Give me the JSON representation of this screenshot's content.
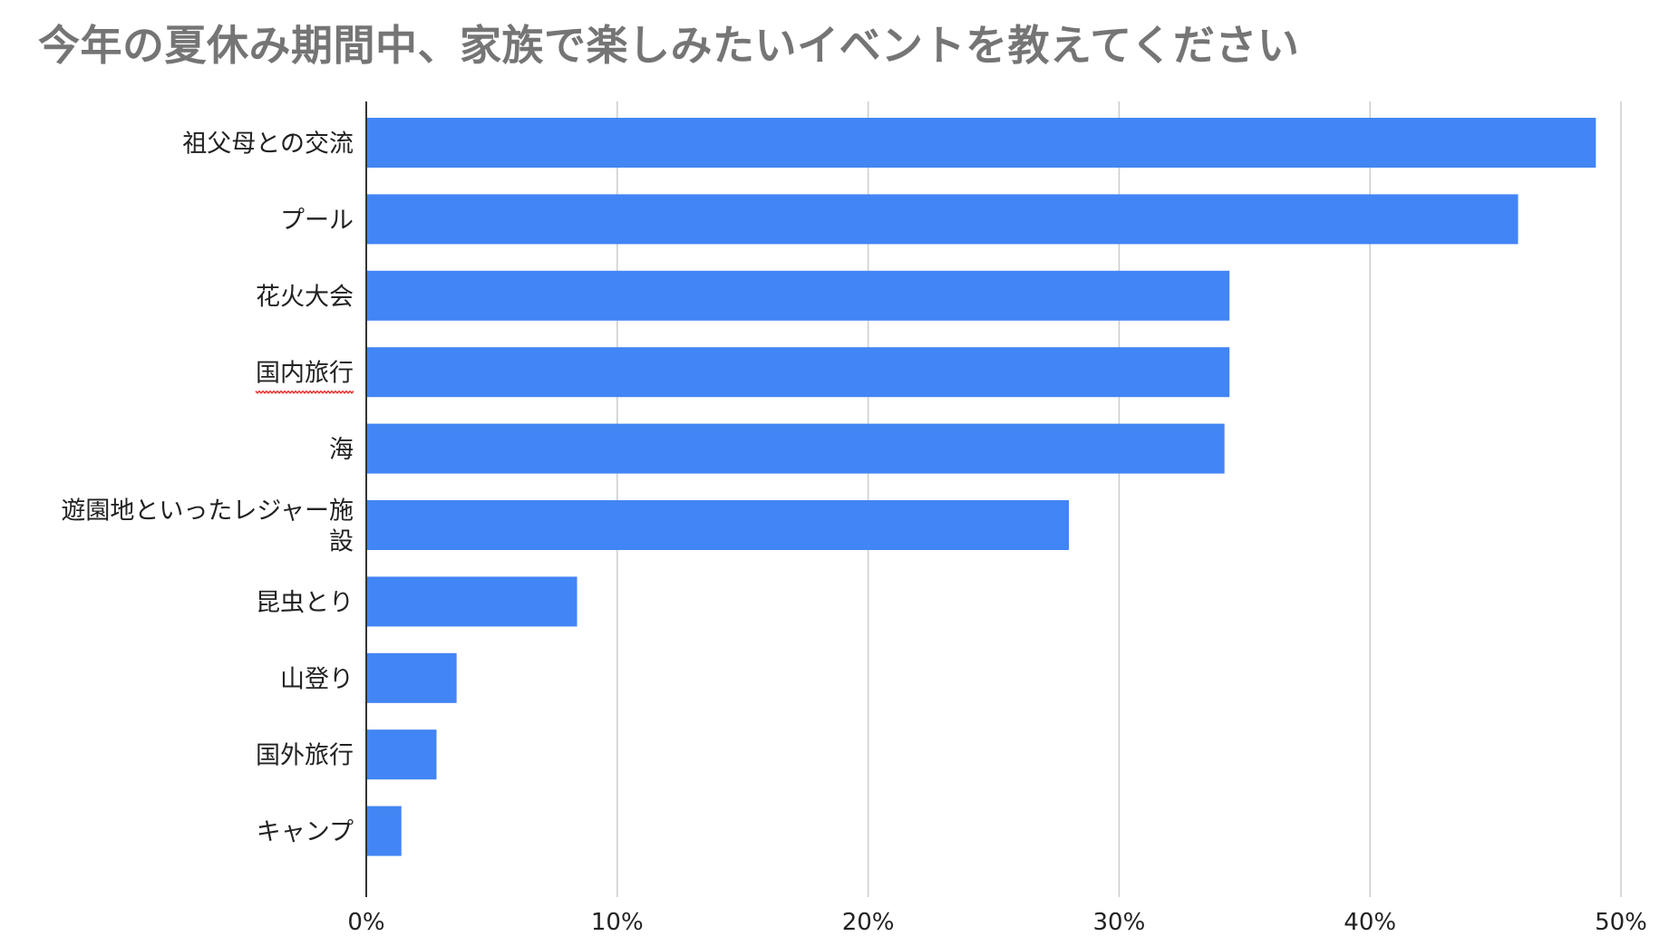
{
  "chart_data": {
    "type": "bar",
    "orientation": "horizontal",
    "title": "今年の夏休み期間中、家族で楽しみたいイベントを教えてください",
    "categories": [
      "祖父母との交流",
      "プール",
      "花火大会",
      "国内旅行",
      "海",
      "遊園地といったレジャー施設",
      "昆虫とり",
      "山登り",
      "国外旅行",
      "キャンプ"
    ],
    "category_label_lines": [
      [
        "祖父母との交流"
      ],
      [
        "プール"
      ],
      [
        "花火大会"
      ],
      [
        "国内旅行"
      ],
      [
        "海"
      ],
      [
        "遊園地といったレジャー施",
        "設"
      ],
      [
        "昆虫とり"
      ],
      [
        "山登り"
      ],
      [
        "国外旅行"
      ],
      [
        "キャンプ"
      ]
    ],
    "values": [
      49.0,
      45.9,
      34.4,
      34.4,
      34.2,
      28.0,
      8.4,
      3.6,
      2.8,
      1.4
    ],
    "x_ticks": [
      "0%",
      "10%",
      "20%",
      "30%",
      "40%",
      "50%"
    ],
    "xlim": [
      0,
      50
    ],
    "xlabel": "",
    "ylabel": "",
    "grid": "vertical",
    "legend": "none",
    "bar_color": "#4285f4",
    "grid_color": "#cccccc",
    "axis_color": "#333333",
    "title_color": "#757575",
    "spellcheck_underline_category": "国内旅行",
    "spellcheck_color": "#e53935"
  }
}
